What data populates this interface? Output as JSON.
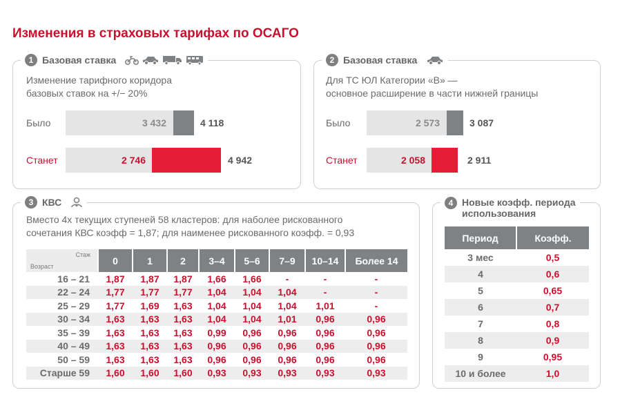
{
  "title": "Изменения в страховых тарифах по ОСАГО",
  "section1": {
    "number": "1",
    "heading": "Базовая ставка",
    "icons": [
      "motorcycle-icon",
      "car-icon",
      "truck-icon",
      "bus-icon"
    ],
    "description_line1": "Изменение тарифного коридора",
    "description_line2": "базовых ставок на +/− 20%",
    "was_label": "Было",
    "will_label": "Станет",
    "was_low": "3 432",
    "was_high": "4 118",
    "will_low": "2 746",
    "will_high": "4 942"
  },
  "section2": {
    "number": "2",
    "heading": "Базовая ставка",
    "icons": [
      "car-icon"
    ],
    "description_line1": "Для ТС ЮЛ Категории «В» —",
    "description_line2": "основное расширение в части нижней границы",
    "was_label": "Было",
    "will_label": "Станет",
    "was_low": "2 573",
    "was_high": "3 087",
    "will_low": "2 058",
    "will_high": "2 911"
  },
  "section3": {
    "number": "3",
    "heading": "КВС",
    "icon": "driver-icon",
    "description_line1": "Вместо 4х текущих ступеней 58 кластеров: для наболее рискованного",
    "description_line2": "сочетания КВС коэфф = 1,87; для наименее рискованного коэфф. = 0,93",
    "corner_experience": "Стаж",
    "corner_age": "Возраст",
    "columns": [
      "0",
      "1",
      "2",
      "3–4",
      "5–6",
      "7–9",
      "10–14",
      "Более 14"
    ],
    "rows": [
      {
        "age": "16 – 21",
        "values": [
          "1,87",
          "1,87",
          "1,87",
          "1,66",
          "1,66",
          "-",
          "-",
          "-"
        ]
      },
      {
        "age": "22 – 24",
        "values": [
          "1,77",
          "1,77",
          "1,77",
          "1,04",
          "1,04",
          "1,04",
          "-",
          "-"
        ]
      },
      {
        "age": "25 – 29",
        "values": [
          "1,77",
          "1,69",
          "1,63",
          "1,04",
          "1,04",
          "1,04",
          "1,01",
          "-"
        ]
      },
      {
        "age": "30 – 34",
        "values": [
          "1,63",
          "1,63",
          "1,63",
          "1,04",
          "1,04",
          "1,01",
          "0,96",
          "0,96"
        ]
      },
      {
        "age": "35 – 39",
        "values": [
          "1,63",
          "1,63",
          "1,63",
          "0,99",
          "0,96",
          "0,96",
          "0,96",
          "0,96"
        ]
      },
      {
        "age": "40 – 49",
        "values": [
          "1,63",
          "1,63",
          "1,63",
          "0,96",
          "0,96",
          "0,96",
          "0,96",
          "0,96"
        ]
      },
      {
        "age": "50 – 59",
        "values": [
          "1,63",
          "1,63",
          "1,63",
          "0,96",
          "0,96",
          "0,96",
          "0,96",
          "0,96"
        ]
      },
      {
        "age": "Старше 59",
        "values": [
          "1,60",
          "1,60",
          "1,60",
          "0,93",
          "0,93",
          "0,93",
          "0,93",
          "0,93"
        ]
      }
    ]
  },
  "section4": {
    "number": "4",
    "heading_line1": "Новые коэфф. периода",
    "heading_line2": "использования",
    "col_period": "Период",
    "col_coef": "Коэфф.",
    "rows": [
      {
        "period": "3 мес",
        "coef": "0,5"
      },
      {
        "period": "4",
        "coef": "0,6"
      },
      {
        "period": "5",
        "coef": "0,65"
      },
      {
        "period": "6",
        "coef": "0,7"
      },
      {
        "period": "7",
        "coef": "0,8"
      },
      {
        "period": "8",
        "coef": "0,9"
      },
      {
        "period": "9",
        "coef": "0,95"
      },
      {
        "period": "10 и более",
        "coef": "1,0"
      }
    ]
  },
  "colors": {
    "accent": "#c8102e",
    "bar_red": "#e31e36",
    "bar_dark": "#7f8285",
    "bar_light": "#e5e5e5",
    "text_gray": "#6a6a6a"
  }
}
